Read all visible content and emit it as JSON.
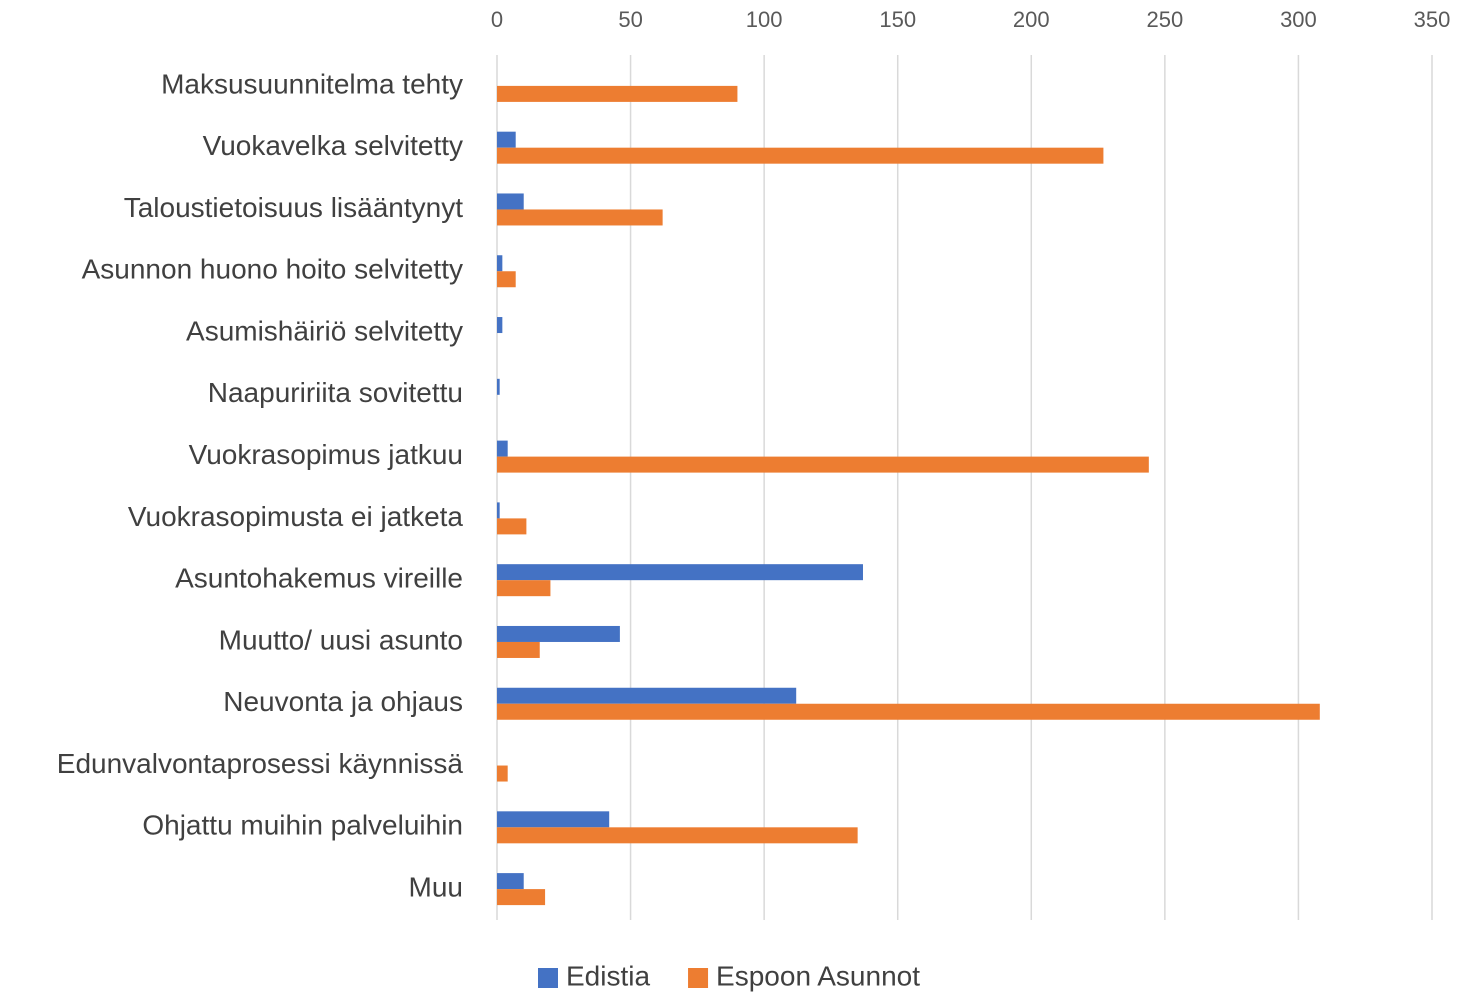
{
  "chart_data": {
    "type": "hbar",
    "categories": [
      "Maksusuunnitelma tehty",
      "Vuokavelka selvitetty",
      "Taloustietoisuus lisääntynyt",
      "Asunnon huono hoito selvitetty",
      "Asumishäiriö selvitetty",
      "Naapuririita sovitettu",
      "Vuokrasopimus jatkuu",
      "Vuokrasopimusta ei jatketa",
      "Asuntohakemus vireille",
      "Muutto/ uusi asunto",
      "Neuvonta ja ohjaus",
      "Edunvalvontaprosessi käynnissä",
      "Ohjattu muihin palveluihin",
      "Muu"
    ],
    "series": [
      {
        "name": "Edistia",
        "color": "#4472c4",
        "values": [
          0,
          7,
          10,
          2,
          2,
          1,
          4,
          1,
          137,
          46,
          112,
          0,
          42,
          10
        ]
      },
      {
        "name": "Espoon Asunnot",
        "color": "#ed7d31",
        "values": [
          90,
          227,
          62,
          7,
          0,
          0,
          244,
          11,
          20,
          16,
          308,
          4,
          135,
          18
        ]
      }
    ],
    "xlim": [
      0,
      350
    ],
    "xticks": [
      0,
      50,
      100,
      150,
      200,
      250,
      300,
      350
    ],
    "grid": true,
    "legend": "bottom"
  }
}
